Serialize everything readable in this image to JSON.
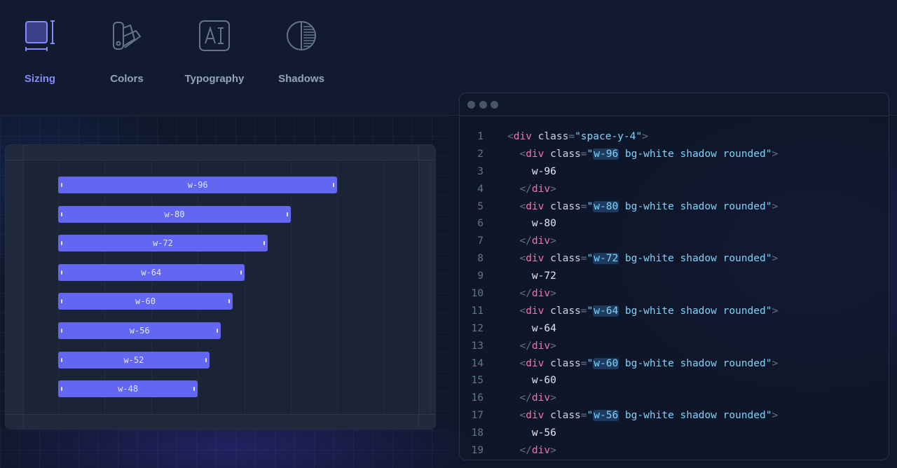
{
  "tabs": [
    {
      "label": "Sizing",
      "icon": "sizing-icon",
      "active": true
    },
    {
      "label": "Colors",
      "icon": "palette-icon",
      "active": false
    },
    {
      "label": "Typography",
      "icon": "typography-icon",
      "active": false
    },
    {
      "label": "Shadows",
      "icon": "shadows-icon",
      "active": false
    }
  ],
  "colors": {
    "accent": "#818cf8",
    "bar": "#6366f1",
    "tag": "#f472b6",
    "string": "#7dd3fc"
  },
  "preview": {
    "bars": [
      {
        "label": "w-96",
        "width_rem": 24
      },
      {
        "label": "w-80",
        "width_rem": 20
      },
      {
        "label": "w-72",
        "width_rem": 18
      },
      {
        "label": "w-64",
        "width_rem": 16
      },
      {
        "label": "w-60",
        "width_rem": 15
      },
      {
        "label": "w-56",
        "width_rem": 14
      },
      {
        "label": "w-52",
        "width_rem": 13
      },
      {
        "label": "w-48",
        "width_rem": 12
      }
    ]
  },
  "code": {
    "outer_class": "space-y-4",
    "rest_class": " bg-white shadow rounded",
    "items": [
      "w-96",
      "w-80",
      "w-72",
      "w-64",
      "w-60",
      "w-56"
    ],
    "line_numbers": [
      "1",
      "2",
      "3",
      "4",
      "5",
      "6",
      "7",
      "8",
      "9",
      "10",
      "11",
      "12",
      "13",
      "14",
      "15",
      "16",
      "17",
      "18",
      "19"
    ]
  }
}
